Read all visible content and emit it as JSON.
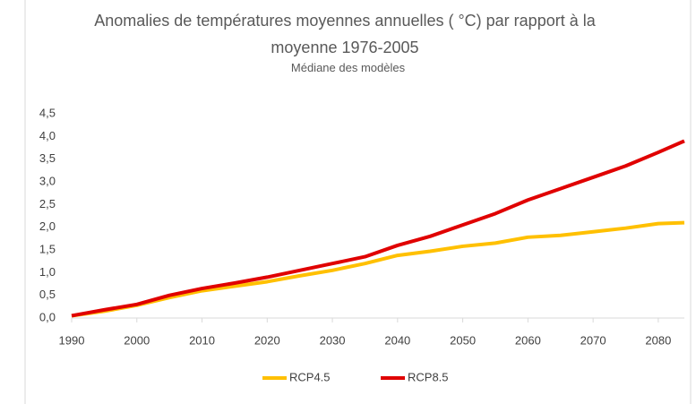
{
  "chart_data": {
    "type": "line",
    "title": "Anomalies de températures moyennes annuelles (  °C) par rapport à la moyenne 1976-2005",
    "subtitle": "Médiane des modèles",
    "x": [
      1990,
      1995,
      2000,
      2005,
      2010,
      2015,
      2020,
      2025,
      2030,
      2035,
      2040,
      2045,
      2050,
      2055,
      2060,
      2065,
      2070,
      2075,
      2080,
      2084
    ],
    "series": [
      {
        "name": "RCP4.5",
        "color": "#ffc000",
        "values": [
          0.05,
          0.15,
          0.28,
          0.45,
          0.6,
          0.7,
          0.8,
          0.93,
          1.05,
          1.2,
          1.38,
          1.47,
          1.58,
          1.65,
          1.78,
          1.82,
          1.9,
          1.98,
          2.08,
          2.1
        ]
      },
      {
        "name": "RCP8.5",
        "color": "#e00000",
        "values": [
          0.05,
          0.18,
          0.3,
          0.5,
          0.65,
          0.77,
          0.9,
          1.05,
          1.2,
          1.35,
          1.6,
          1.8,
          2.05,
          2.3,
          2.6,
          2.85,
          3.1,
          3.35,
          3.65,
          3.9
        ]
      }
    ],
    "xlim": [
      1990,
      2084
    ],
    "xticks": [
      1990,
      2000,
      2010,
      2020,
      2030,
      2040,
      2050,
      2060,
      2070,
      2080
    ],
    "ylim": [
      0,
      4.5
    ],
    "yticks": [
      {
        "value": 0,
        "label": "0,0"
      },
      {
        "value": 0.5,
        "label": "0,5"
      },
      {
        "value": 1,
        "label": "1,0"
      },
      {
        "value": 1.5,
        "label": "1,5"
      },
      {
        "value": 2,
        "label": "2,0"
      },
      {
        "value": 2.5,
        "label": "2,5"
      },
      {
        "value": 3,
        "label": "3,0"
      },
      {
        "value": 3.5,
        "label": "3,5"
      },
      {
        "value": 4,
        "label": "4,0"
      },
      {
        "value": 4.5,
        "label": "4,5"
      }
    ],
    "grid": false,
    "legend": "bottom"
  }
}
